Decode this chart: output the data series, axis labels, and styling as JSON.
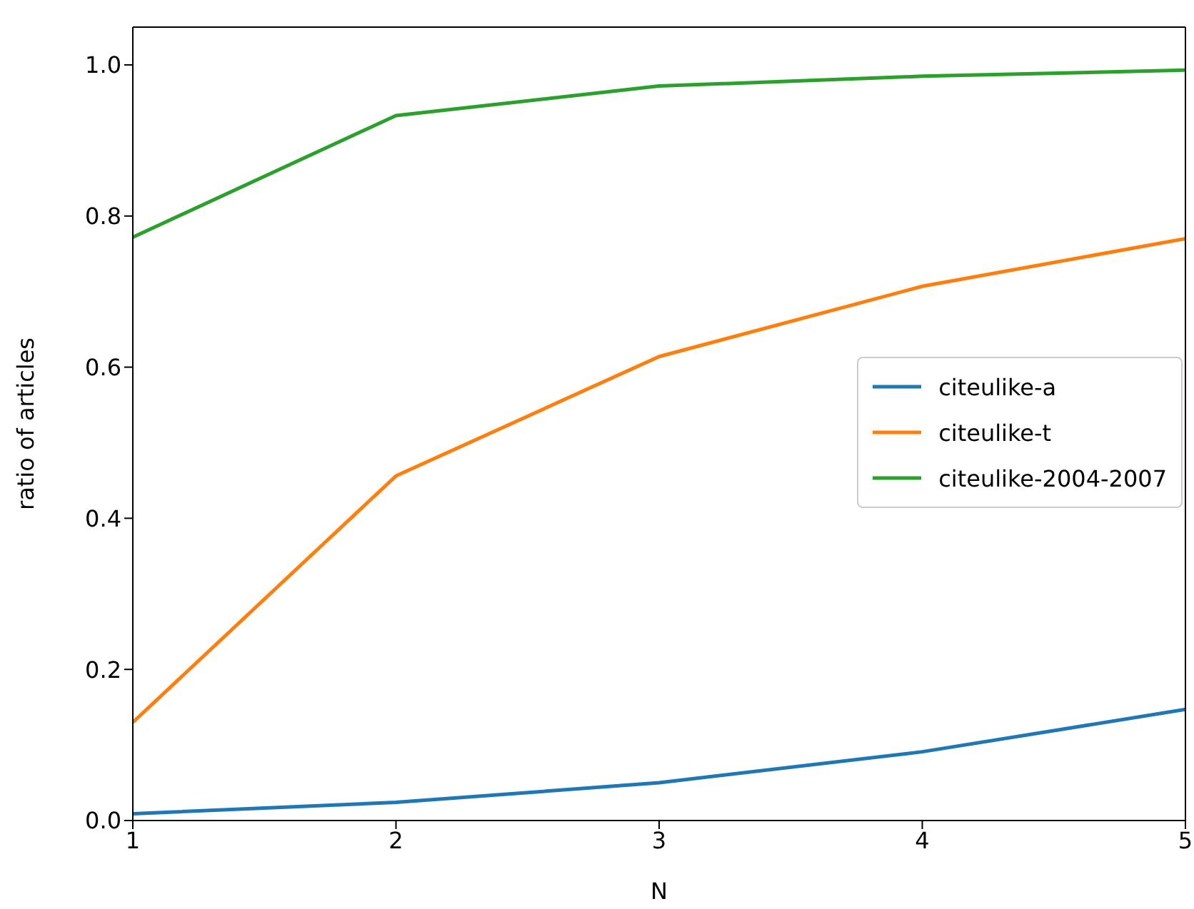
{
  "chart_data": {
    "type": "line",
    "xlabel": "N",
    "ylabel": "ratio of articles",
    "x": [
      1,
      2,
      3,
      4,
      5
    ],
    "xlim": [
      1,
      5
    ],
    "xticks": [
      1,
      2,
      3,
      4,
      5
    ],
    "ylim": [
      0,
      1.05
    ],
    "yticks": [
      {
        "value": 0,
        "label": "0.0"
      },
      {
        "value": 0.2,
        "label": "0.2"
      },
      {
        "value": 0.4,
        "label": "0.4"
      },
      {
        "value": 0.6,
        "label": "0.6"
      },
      {
        "value": 0.8,
        "label": "0.8"
      },
      {
        "value": 1,
        "label": "1.0"
      }
    ],
    "grid": false,
    "legend": "right",
    "marker": "none",
    "line_style": "solid",
    "series": [
      {
        "name": "citeulike-a",
        "color": "#1f77b4",
        "values": [
          0.009,
          0.024,
          0.05,
          0.091,
          0.147
        ]
      },
      {
        "name": "citeulike-t",
        "color": "#ff7f0e",
        "values": [
          0.13,
          0.456,
          0.614,
          0.707,
          0.77
        ]
      },
      {
        "name": "citeulike-2004-2007",
        "color": "#2ca02c",
        "values": [
          0.772,
          0.933,
          0.972,
          0.985,
          0.993
        ]
      }
    ]
  }
}
